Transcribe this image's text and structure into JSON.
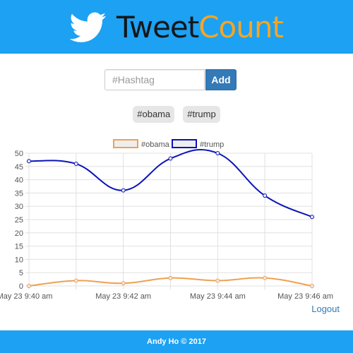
{
  "header": {
    "brand_part1": "Tweet",
    "brand_part2": "Count",
    "logo_icon": "twitter-bird-icon"
  },
  "form": {
    "placeholder": "#Hashtag",
    "add_label": "Add"
  },
  "tags": [
    "#obama",
    "#trump"
  ],
  "logout_label": "Logout",
  "footer": {
    "text": "Andy Ho © 2017"
  },
  "colors": {
    "header": "#1da1f2",
    "brand_accent": "#f5a623",
    "button": "#337ab7",
    "obama_series": "#f0a050",
    "trump_series": "#0a14b8"
  },
  "chart_data": {
    "type": "line",
    "x": [
      "9:40",
      "9:41",
      "9:42",
      "9:43",
      "9:44",
      "9:45",
      "9:46"
    ],
    "x_tick_labels": [
      {
        "index": 0,
        "label": "May 23 9:40 am"
      },
      {
        "index": 2,
        "label": "May 23 9:42 am"
      },
      {
        "index": 4,
        "label": "May 23 9:44 am"
      },
      {
        "index": 6,
        "label": "May 23 9:46 am"
      }
    ],
    "series": [
      {
        "name": "#obama",
        "color": "#f0a050",
        "values": [
          0,
          2,
          1,
          3,
          2,
          3,
          0
        ]
      },
      {
        "name": "#trump",
        "color": "#0a14b8",
        "values": [
          47,
          46,
          36,
          48,
          50,
          34,
          26
        ]
      }
    ],
    "ylim": [
      0,
      50
    ],
    "yticks": [
      0,
      5,
      10,
      15,
      20,
      25,
      30,
      35,
      40,
      45,
      50
    ],
    "grid": true,
    "legend": "top-center"
  }
}
